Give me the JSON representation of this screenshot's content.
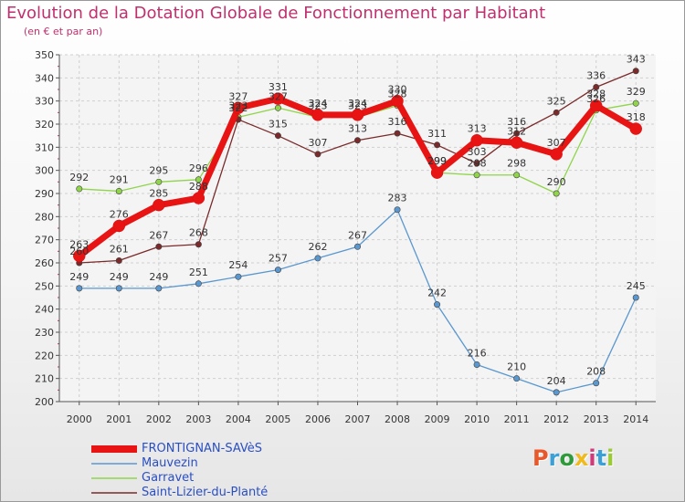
{
  "title": "Evolution de la Dotation Globale de Fonctionnement par Habitant",
  "subtitle": "(en € et par an)",
  "brand": {
    "text": "Proxiti",
    "colors": [
      "#e8582b",
      "#3aa0d8",
      "#2e9a3a",
      "#f0b91c",
      "#d13a7a",
      "#3aa0d8",
      "#9acb34"
    ]
  },
  "chart_data": {
    "type": "line",
    "x": [
      "2000",
      "2001",
      "2002",
      "2003",
      "2004",
      "2005",
      "2006",
      "2007",
      "2008",
      "2009",
      "2010",
      "2011",
      "2012",
      "2013",
      "2014"
    ],
    "ylim": [
      200,
      350
    ],
    "yticks": [
      "200",
      "210",
      "220",
      "230",
      "240",
      "250",
      "260",
      "270",
      "280",
      "290",
      "300",
      "310",
      "320",
      "330",
      "340",
      "350"
    ],
    "grid": true,
    "legend": "bottom-left",
    "series": [
      {
        "name": "FRONTIGNAN-SAVèS",
        "color": "#e81414",
        "values": [
          263,
          276,
          285,
          288,
          327,
          331,
          324,
          324,
          330,
          299,
          313,
          312,
          307,
          328,
          318
        ],
        "labels": [
          "263",
          "276",
          "285",
          "288",
          "327",
          "331",
          "324",
          "324",
          "330",
          "299",
          "313",
          "312",
          "307",
          "328",
          "318"
        ]
      },
      {
        "name": "Mauvezin",
        "color": "#5a97cf",
        "values": [
          249,
          249,
          249,
          251,
          254,
          257,
          262,
          267,
          283,
          242,
          216,
          210,
          204,
          208,
          245
        ],
        "labels": [
          "249",
          "249",
          "249",
          "251",
          "254",
          "257",
          "262",
          "267",
          "283",
          "242",
          "216",
          "210",
          "204",
          "208",
          "245"
        ]
      },
      {
        "name": "Garravet",
        "color": "#8fd44a",
        "values": [
          292,
          291,
          295,
          296,
          323,
          327,
          323,
          323,
          328,
          299,
          298,
          298,
          290,
          326,
          329
        ],
        "labels": [
          "292",
          "291",
          "295",
          "296",
          "323",
          "327",
          "323",
          "323",
          "328",
          "299",
          "298",
          "298",
          "290",
          "326",
          "329"
        ]
      },
      {
        "name": "Saint-Lizier-du-Planté",
        "color": "#7a2a2a",
        "values": [
          260,
          261,
          267,
          268,
          322,
          315,
          307,
          313,
          316,
          311,
          303,
          316,
          325,
          336,
          343
        ],
        "labels": [
          "260",
          "261",
          "267",
          "268",
          "322",
          "315",
          "307",
          "313",
          "316",
          "311",
          "303",
          "316",
          "325",
          "336",
          "343"
        ]
      }
    ]
  }
}
